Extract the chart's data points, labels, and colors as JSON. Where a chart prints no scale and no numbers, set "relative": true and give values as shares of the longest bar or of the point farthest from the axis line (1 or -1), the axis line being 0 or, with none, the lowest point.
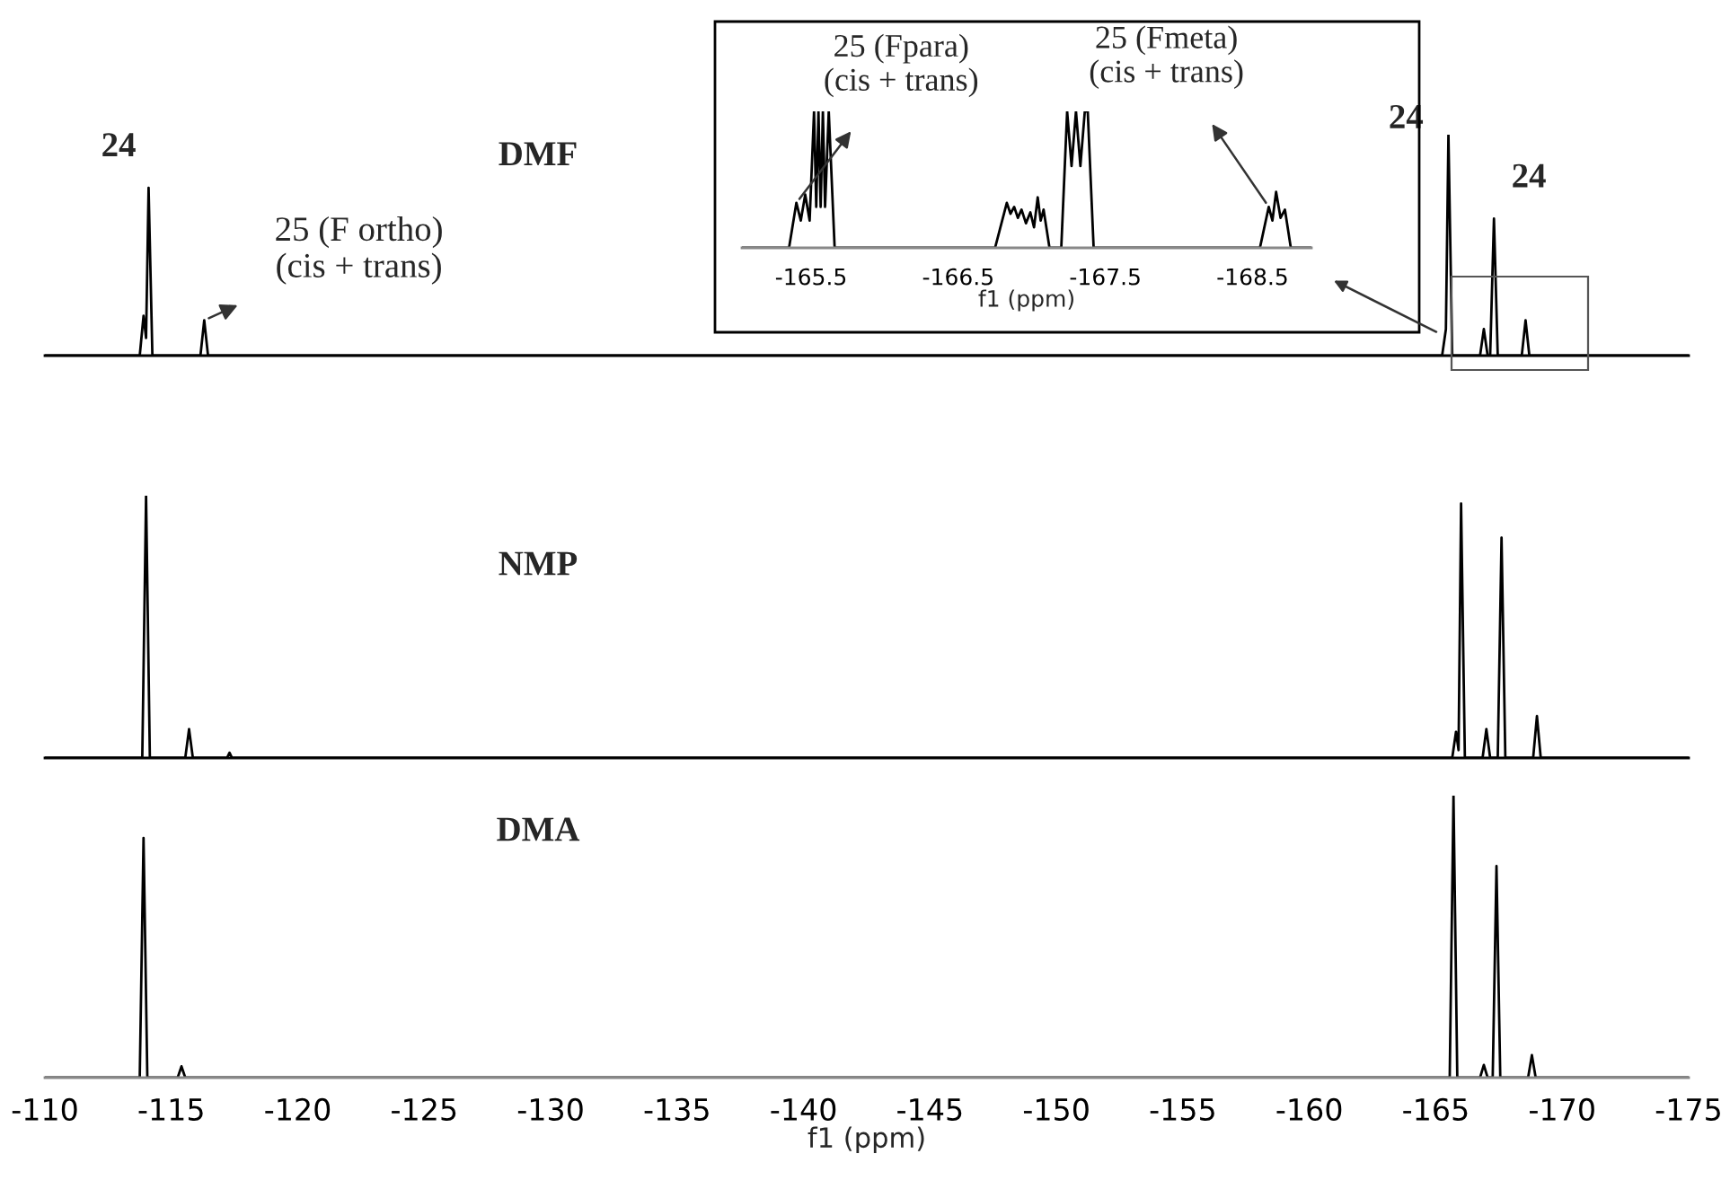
{
  "chart_data": [
    {
      "type": "line",
      "title": "DMF",
      "relative": true,
      "xlim": [
        -110,
        -175
      ],
      "tick_labels": false,
      "grid": false,
      "legend": false,
      "series": [
        {
          "color": "#000000",
          "x": [
            -110,
            -113.75,
            -113.9,
            -114.0,
            -114.1,
            -114.25,
            -116.15,
            -116.3,
            -116.45,
            -165.25,
            -165.4,
            -165.5,
            -165.65,
            -166.75,
            -166.9,
            -167.05,
            -167.15,
            -167.3,
            -167.45,
            -168.4,
            -168.55,
            -168.7,
            -175
          ],
          "values": [
            0,
            0,
            0.18,
            0.08,
            0.76,
            0,
            0,
            0.16,
            0,
            0,
            0.12,
            1.0,
            0,
            0,
            0.12,
            0,
            0,
            0.62,
            0,
            0,
            0.16,
            0,
            0
          ]
        }
      ],
      "annotations": [
        {
          "text": "24",
          "x": -114.1,
          "y": 0.76
        },
        {
          "text": "25 (F ortho)\n(cis + trans)",
          "x": -116.3,
          "y": 0.16
        },
        {
          "text": "24",
          "x": -165.5,
          "y": 1.0
        },
        {
          "text": "24",
          "x": -167.3,
          "y": 0.62
        }
      ]
    },
    {
      "type": "line",
      "title": "NMP",
      "relative": true,
      "xlim": [
        -110,
        -175
      ],
      "tick_labels": false,
      "grid": false,
      "legend": false,
      "series": [
        {
          "color": "#000000",
          "x": [
            -110,
            -113.85,
            -114.0,
            -114.15,
            -115.55,
            -115.7,
            -115.85,
            -117.2,
            -117.3,
            -117.4,
            -165.65,
            -165.8,
            -165.9,
            -166.0,
            -166.15,
            -166.85,
            -167.0,
            -167.15,
            -167.45,
            -167.6,
            -167.75,
            -168.85,
            -169.0,
            -169.15,
            -175
          ],
          "values": [
            0,
            0,
            1.0,
            0,
            0,
            0.11,
            0,
            0,
            0.02,
            0,
            0,
            0.1,
            0.03,
            0.97,
            0,
            0,
            0.11,
            0,
            0,
            0.84,
            0,
            0,
            0.16,
            0,
            0
          ]
        }
      ]
    },
    {
      "type": "line",
      "title": "DMA",
      "relative": true,
      "xlim": [
        -110,
        -175
      ],
      "tick_labels": "x",
      "grid": false,
      "legend": false,
      "xlabel": "f1 (ppm)",
      "xticks": [
        -110,
        -115,
        -120,
        -125,
        -130,
        -135,
        -140,
        -145,
        -150,
        -155,
        -160,
        -165,
        -170,
        -175
      ],
      "series": [
        {
          "color": "#000000",
          "x": [
            -110,
            -113.75,
            -113.9,
            -114.05,
            -115.25,
            -115.4,
            -115.55,
            -165.55,
            -165.7,
            -165.85,
            -166.75,
            -166.9,
            -167.05,
            -167.25,
            -167.4,
            -167.55,
            -168.65,
            -168.8,
            -168.95,
            -175
          ],
          "values": [
            0,
            0,
            0.85,
            0,
            0,
            0.04,
            0,
            0,
            1.0,
            0,
            0,
            0.045,
            0,
            0,
            0.75,
            0,
            0,
            0.08,
            0,
            0
          ]
        }
      ]
    },
    {
      "type": "line",
      "relative": true,
      "xlim": [
        -165.03,
        -168.9
      ],
      "tick_labels": "x",
      "grid": false,
      "legend": false,
      "xlabel": "f1 (ppm)",
      "xticks": [
        -165.5,
        -166.5,
        -167.5,
        -168.5
      ],
      "series": [
        {
          "color": "#000000",
          "x": [
            -165.03,
            -165.35,
            -165.4,
            -165.43,
            -165.46,
            -165.49,
            -165.52,
            -165.535,
            -165.55,
            -165.565,
            -165.58,
            -165.595,
            -165.62,
            -165.66,
            -166.75,
            -166.83,
            -166.855,
            -166.88,
            -166.905,
            -166.93,
            -166.96,
            -166.99,
            -167.015,
            -167.04,
            -167.06,
            -167.08,
            -167.12,
            -167.2,
            -167.24,
            -167.27,
            -167.3,
            -167.33,
            -167.36,
            -167.38,
            -167.42,
            -168.55,
            -168.61,
            -168.635,
            -168.66,
            -168.69,
            -168.72,
            -168.76,
            -168.9
          ],
          "values": [
            0,
            0,
            0.33,
            0.2,
            0.39,
            0.2,
            1,
            0.3,
            1,
            0.3,
            1,
            0.3,
            1,
            0,
            0,
            0.33,
            0.25,
            0.3,
            0.22,
            0.28,
            0.18,
            0.26,
            0.15,
            0.37,
            0.2,
            0.28,
            0,
            0,
            1,
            0.6,
            1,
            0.6,
            1,
            1,
            0,
            0,
            0.3,
            0.2,
            0.41,
            0.22,
            0.28,
            0,
            0
          ]
        }
      ],
      "annotations": [
        {
          "text": "25 (Fpara)\n(cis + trans)",
          "x": -165.4,
          "y": 0.33
        },
        {
          "text": "25 (Fmeta)\n(cis + trans)",
          "x": -168.61,
          "y": 0.3
        }
      ]
    }
  ]
}
